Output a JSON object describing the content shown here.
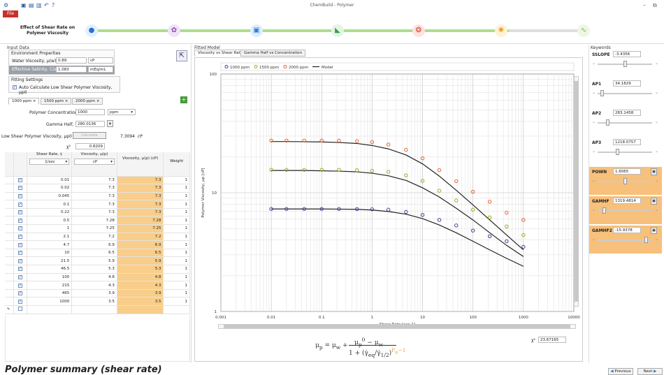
{
  "app": {
    "title": "ChemBuild - Polymer",
    "file_menu": "File",
    "window_controls": [
      "–",
      "⧉"
    ]
  },
  "quick_access_icons": [
    "app-icon",
    "save-icon",
    "open-icon",
    "save-as-icon",
    "undo-icon",
    "help-icon"
  ],
  "workflow": {
    "title": "Effect of Shear Rate on Polymer Viscosity",
    "steps": [
      {
        "icon": "water-drop-icon",
        "color": "#2a6fcf"
      },
      {
        "icon": "molecule-icon",
        "color": "#8b4fb0"
      },
      {
        "icon": "beaker-icon",
        "color": "#2a7fd0"
      },
      {
        "icon": "chart-icon",
        "color": "#3b9b4a"
      },
      {
        "icon": "gear-molecule-icon",
        "color": "#d04a3a"
      },
      {
        "icon": "lightbulb-icon",
        "color": "#e2a12a"
      },
      {
        "icon": "polymer-chain-icon",
        "color": "#6fb64a"
      }
    ]
  },
  "input_data": {
    "panel_title": "Input Data",
    "env_title": "Environment Properties",
    "water_viscosity_label": "Water Viscosity, μ(w)",
    "water_viscosity_value": "0.89",
    "water_viscosity_unit": "cP",
    "salinity_label": "Effective Salinity, C(sep)",
    "salinity_value": "1.083",
    "salinity_unit": "mEq/mL",
    "fitting_title": "Fitting Settings",
    "auto_calc_label": "Auto Calculate Low Shear Polymer Viscosity, μp0",
    "tabs": [
      "1000 ppm",
      "1500 ppm",
      "2000 ppm"
    ],
    "tab_close": "×",
    "add_tab": "+",
    "conc_label": "Polymer Concentration:",
    "conc_value": "1000",
    "conc_unit": "ppm",
    "gamma_label": "Gamma Half, γ̇1/2",
    "gamma_value": "280.0136",
    "low_shear_label": "Low Shear Polymer Viscosity, μp0",
    "calc_button": "Calculate",
    "low_shear_value": "7.3094",
    "low_shear_unit": "cP",
    "chi_label": "χ²",
    "chi_value": "0.8209",
    "table_headers": {
      "shear": "Shear Rate, γ̇",
      "visc": "Viscosity, μ(p)",
      "visc_fit": "Viscosity, μ(p) (cP)",
      "weight": "Weight"
    },
    "shear_unit": "1/sec",
    "visc_unit": "cP",
    "rows": [
      [
        "0.01",
        "7.3",
        "7.3",
        "1"
      ],
      [
        "0.02",
        "7.3",
        "7.3",
        "1"
      ],
      [
        "0.045",
        "7.3",
        "7.3",
        "1"
      ],
      [
        "0.1",
        "7.3",
        "7.3",
        "1"
      ],
      [
        "0.22",
        "7.3",
        "7.3",
        "1"
      ],
      [
        "0.5",
        "7.28",
        "7.28",
        "1"
      ],
      [
        "1",
        "7.25",
        "7.25",
        "1"
      ],
      [
        "2.1",
        "7.2",
        "7.2",
        "1"
      ],
      [
        "4.7",
        "6.9",
        "6.9",
        "1"
      ],
      [
        "10",
        "6.5",
        "6.5",
        "1"
      ],
      [
        "21.5",
        "5.9",
        "5.9",
        "1"
      ],
      [
        "46.5",
        "5.3",
        "5.3",
        "1"
      ],
      [
        "100",
        "4.8",
        "4.8",
        "1"
      ],
      [
        "215",
        "4.3",
        "4.3",
        "1"
      ],
      [
        "465",
        "3.9",
        "3.9",
        "1"
      ],
      [
        "1000",
        "3.5",
        "3.5",
        "1"
      ]
    ]
  },
  "fitted_model": {
    "panel_title": "Fitted Model",
    "tabs": [
      "Viscosity vs Shear Rate",
      "Gamma Half vs Concentration"
    ],
    "chi_label": "χ²",
    "chi_value": "23.67165"
  },
  "keywords": {
    "panel_title": "Keywords",
    "items": [
      {
        "name": "SSLOPE",
        "value": "-3.4356",
        "highlight": false,
        "lock": false,
        "slider": 0.5
      },
      {
        "name": "AP1",
        "value": "34.1829",
        "highlight": false,
        "lock": false,
        "slider": 0.06
      },
      {
        "name": "AP2",
        "value": "283.1458",
        "highlight": false,
        "lock": false,
        "slider": 0.16
      },
      {
        "name": "AP3",
        "value": "1218.0757",
        "highlight": false,
        "lock": false,
        "slider": 0.35
      },
      {
        "name": "POWN",
        "value": "1.6065",
        "highlight": true,
        "lock": true,
        "slider": 0.5
      },
      {
        "name": "GAMHF",
        "value": "1319.4814",
        "highlight": true,
        "lock": true,
        "slider": 0.1
      },
      {
        "name": "GAMHF2",
        "value": "-15.9378",
        "highlight": true,
        "lock": true,
        "slider": 0.9
      }
    ]
  },
  "footer": {
    "title": "Polymer summary (shear rate)",
    "previous": "Previous",
    "next": "Next"
  },
  "chart_data": {
    "type": "scatter",
    "xlabel": "Shear Rate [sec-1]",
    "ylabel": "Polymer Viscosity, μp [cP]",
    "xscale": "log",
    "yscale": "log",
    "xlim": [
      0.001,
      10000
    ],
    "ylim": [
      1,
      100
    ],
    "x_ticks": [
      "0.001",
      "0.01",
      "0.1",
      "1",
      "10",
      "100",
      "1000",
      "10000"
    ],
    "y_ticks": [
      "1",
      "10",
      "100"
    ],
    "legend": [
      "1000 ppm",
      "1500 ppm",
      "2000 ppm",
      "Model"
    ],
    "legend_placement": "top",
    "grid": true,
    "x": [
      0.01,
      0.02,
      0.045,
      0.1,
      0.22,
      0.5,
      1,
      2.1,
      4.7,
      10,
      21.5,
      46.5,
      100,
      215,
      465,
      1000
    ],
    "series": [
      {
        "name": "1000 ppm",
        "color": "#4040a0",
        "values": [
          7.3,
          7.3,
          7.3,
          7.3,
          7.3,
          7.28,
          7.25,
          7.2,
          6.9,
          6.5,
          5.9,
          5.3,
          4.8,
          4.3,
          3.9,
          3.5
        ]
      },
      {
        "name": "1500 ppm",
        "color": "#8fb020",
        "values": [
          15.6,
          15.6,
          15.6,
          15.6,
          15.6,
          15.5,
          15.3,
          15.0,
          14.0,
          12.6,
          10.4,
          8.6,
          7.2,
          6.2,
          5.2,
          4.4
        ]
      },
      {
        "name": "2000 ppm",
        "color": "#e86030",
        "values": [
          27.5,
          27.5,
          27.5,
          27.5,
          27.5,
          27.2,
          26.7,
          25.5,
          23.0,
          19.5,
          15.5,
          12.5,
          10.2,
          8.4,
          6.8,
          5.9
        ]
      }
    ],
    "model": [
      {
        "color": "#222",
        "values": [
          7.3,
          7.3,
          7.3,
          7.3,
          7.28,
          7.25,
          7.15,
          6.95,
          6.6,
          6.05,
          5.35,
          4.6,
          3.9,
          3.3,
          2.8,
          2.4
        ]
      },
      {
        "color": "#222",
        "values": [
          15.4,
          15.4,
          15.4,
          15.3,
          15.2,
          15.0,
          14.6,
          13.9,
          12.7,
          11.0,
          9.2,
          7.4,
          5.9,
          4.6,
          3.6,
          2.9
        ]
      },
      {
        "color": "#222",
        "values": [
          27.0,
          27.0,
          26.9,
          26.8,
          26.5,
          26.0,
          25.0,
          23.4,
          20.8,
          17.5,
          13.8,
          10.5,
          7.9,
          5.9,
          4.4,
          3.3
        ]
      }
    ]
  }
}
